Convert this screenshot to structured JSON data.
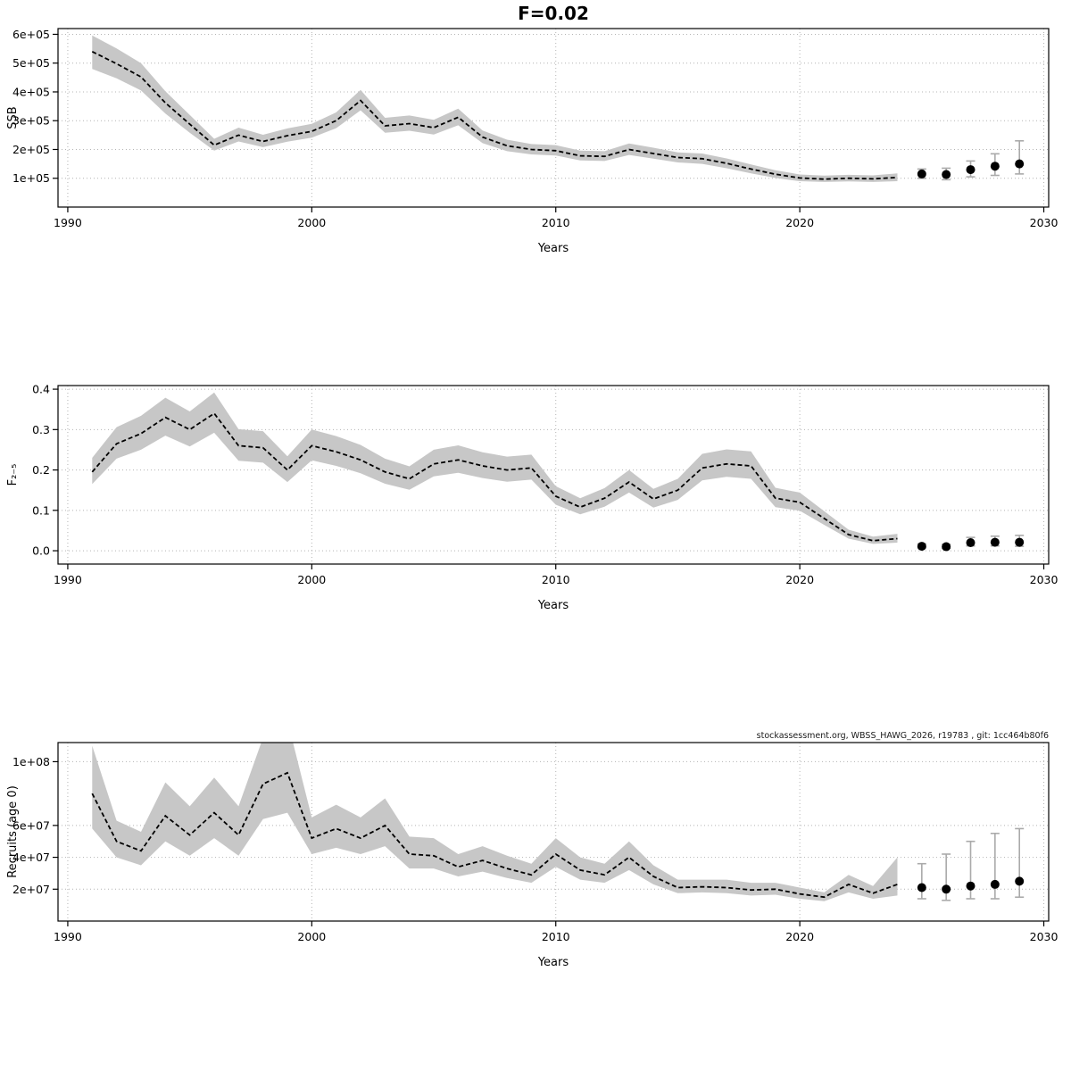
{
  "page": {
    "title": "F=0.02",
    "watermark": "stockassessment.org, WBSS_HAWG_2026, r19783 , git: 1cc464b80f6"
  },
  "colors": {
    "band": "#c7c7c7",
    "line": "#000000",
    "point": "#000000",
    "errorbar": "#aaaaaa",
    "grid": "#b4b4b4",
    "axis": "#000000"
  },
  "chart_data": [
    {
      "id": "ssb",
      "type": "line",
      "title": "F=0.02",
      "xlabel": "Years",
      "ylabel": "SSB",
      "yscale": "linear",
      "grid": true,
      "xlim": [
        1989.6,
        2030.2
      ],
      "ylim": [
        0,
        620000
      ],
      "xticks": [
        1990,
        2000,
        2010,
        2020,
        2030
      ],
      "xtick_labels": [
        "1990",
        "2000",
        "2010",
        "2020",
        "2030"
      ],
      "yticks": [
        100000,
        200000,
        300000,
        400000,
        500000,
        600000
      ],
      "ytick_labels": [
        "1e+05",
        "2e+05",
        "3e+05",
        "4e+05",
        "5e+05",
        "6e+05"
      ],
      "years": [
        1991,
        1992,
        1993,
        1994,
        1995,
        1996,
        1997,
        1998,
        1999,
        2000,
        2001,
        2002,
        2003,
        2004,
        2005,
        2006,
        2007,
        2008,
        2009,
        2010,
        2011,
        2012,
        2013,
        2014,
        2015,
        2016,
        2017,
        2018,
        2019,
        2020,
        2021,
        2022,
        2023,
        2024
      ],
      "estimate": [
        540000,
        498000,
        452000,
        362000,
        288000,
        215000,
        250000,
        228000,
        248000,
        263000,
        300000,
        370000,
        282000,
        290000,
        276000,
        312000,
        243000,
        213000,
        200000,
        196000,
        178000,
        176000,
        200000,
        186000,
        172000,
        168000,
        152000,
        132000,
        114000,
        101000,
        97000,
        100000,
        98000,
        103000
      ],
      "ci_low": [
        480000,
        447000,
        405000,
        325000,
        258000,
        196000,
        228000,
        208000,
        227000,
        241000,
        274000,
        336000,
        258000,
        265000,
        252000,
        284000,
        222000,
        194000,
        183000,
        179000,
        162000,
        160000,
        181000,
        168000,
        155000,
        150000,
        135000,
        117000,
        101000,
        90000,
        87000,
        89000,
        87000,
        90000
      ],
      "ci_high": [
        596000,
        551000,
        500000,
        402000,
        320000,
        237000,
        276000,
        251000,
        273000,
        289000,
        329000,
        407000,
        310000,
        318000,
        303000,
        342000,
        266000,
        234000,
        219000,
        215000,
        196000,
        194000,
        221000,
        206000,
        190000,
        186000,
        169000,
        148000,
        128000,
        113000,
        109000,
        112000,
        110000,
        117000
      ],
      "forecast": {
        "years": [
          2025,
          2026,
          2027,
          2028,
          2029
        ],
        "estimate": [
          115000,
          113000,
          130000,
          142000,
          150000
        ],
        "ci_low": [
          100000,
          95000,
          105000,
          110000,
          115000
        ],
        "ci_high": [
          132000,
          135000,
          160000,
          185000,
          230000
        ]
      }
    },
    {
      "id": "fbar",
      "type": "line",
      "title": "",
      "xlabel": "Years",
      "ylabel": "F₂₋₅",
      "yscale": "linear",
      "grid": true,
      "xlim": [
        1989.6,
        2030.2
      ],
      "ylim": [
        -0.033,
        0.409
      ],
      "xticks": [
        1990,
        2000,
        2010,
        2020,
        2030
      ],
      "xtick_labels": [
        "1990",
        "2000",
        "2010",
        "2020",
        "2030"
      ],
      "yticks": [
        0.0,
        0.1,
        0.2,
        0.3,
        0.4
      ],
      "ytick_labels": [
        "0.0",
        "0.1",
        "0.2",
        "0.3",
        "0.4"
      ],
      "years": [
        1991,
        1992,
        1993,
        1994,
        1995,
        1996,
        1997,
        1998,
        1999,
        2000,
        2001,
        2002,
        2003,
        2004,
        2005,
        2006,
        2007,
        2008,
        2009,
        2010,
        2011,
        2012,
        2013,
        2014,
        2015,
        2016,
        2017,
        2018,
        2019,
        2020,
        2021,
        2022,
        2023,
        2024
      ],
      "estimate": [
        0.195,
        0.265,
        0.29,
        0.33,
        0.3,
        0.34,
        0.26,
        0.255,
        0.2,
        0.26,
        0.245,
        0.225,
        0.195,
        0.178,
        0.215,
        0.225,
        0.21,
        0.2,
        0.205,
        0.135,
        0.108,
        0.13,
        0.17,
        0.128,
        0.15,
        0.205,
        0.215,
        0.21,
        0.13,
        0.12,
        0.08,
        0.04,
        0.025,
        0.03
      ],
      "ci_low": [
        0.165,
        0.228,
        0.25,
        0.285,
        0.258,
        0.292,
        0.223,
        0.218,
        0.17,
        0.224,
        0.21,
        0.192,
        0.166,
        0.151,
        0.184,
        0.193,
        0.18,
        0.171,
        0.176,
        0.114,
        0.09,
        0.109,
        0.144,
        0.107,
        0.126,
        0.174,
        0.183,
        0.178,
        0.108,
        0.099,
        0.064,
        0.03,
        0.017,
        0.02
      ],
      "ci_high": [
        0.23,
        0.306,
        0.334,
        0.379,
        0.345,
        0.392,
        0.301,
        0.296,
        0.234,
        0.3,
        0.284,
        0.262,
        0.228,
        0.209,
        0.25,
        0.261,
        0.244,
        0.233,
        0.238,
        0.16,
        0.13,
        0.155,
        0.2,
        0.153,
        0.178,
        0.24,
        0.251,
        0.246,
        0.156,
        0.144,
        0.098,
        0.052,
        0.035,
        0.042
      ],
      "forecast": {
        "years": [
          2025,
          2026,
          2027,
          2028,
          2029
        ],
        "estimate": [
          0.011,
          0.01,
          0.02,
          0.021,
          0.021
        ],
        "ci_low": [
          0.007,
          0.006,
          0.012,
          0.012,
          0.011
        ],
        "ci_high": [
          0.017,
          0.016,
          0.033,
          0.036,
          0.038
        ]
      }
    },
    {
      "id": "recruits",
      "type": "line",
      "title": "",
      "xlabel": "Years",
      "ylabel": "Recruits (age 0)",
      "yscale": "linear",
      "grid": true,
      "xlim": [
        1989.6,
        2030.2
      ],
      "ylim": [
        0,
        112000000
      ],
      "xticks": [
        1990,
        2000,
        2010,
        2020,
        2030
      ],
      "xtick_labels": [
        "1990",
        "2000",
        "2010",
        "2020",
        "2030"
      ],
      "yticks": [
        20000000,
        40000000,
        60000000,
        100000000
      ],
      "ytick_labels": [
        "2e+07",
        "4e+07",
        "6e+07",
        "1e+08"
      ],
      "years": [
        1991,
        1992,
        1993,
        1994,
        1995,
        1996,
        1997,
        1998,
        1999,
        2000,
        2001,
        2002,
        2003,
        2004,
        2005,
        2006,
        2007,
        2008,
        2009,
        2010,
        2011,
        2012,
        2013,
        2014,
        2015,
        2016,
        2017,
        2018,
        2019,
        2020,
        2021,
        2022,
        2023,
        2024
      ],
      "estimate": [
        80000000,
        50000000,
        44000000,
        66000000,
        54000000,
        68000000,
        54000000,
        86000000,
        93000000,
        52000000,
        58000000,
        52000000,
        60000000,
        42000000,
        41000000,
        34000000,
        38000000,
        33000000,
        29000000,
        42000000,
        32000000,
        29000000,
        40000000,
        28000000,
        21000000,
        21500000,
        21000000,
        19500000,
        20000000,
        17000000,
        15000000,
        23000000,
        17500000,
        23000000
      ],
      "ci_low": [
        58000000,
        40000000,
        35000000,
        50000000,
        41000000,
        52000000,
        41000000,
        64000000,
        68000000,
        42000000,
        46000000,
        42000000,
        47000000,
        33000000,
        33000000,
        28000000,
        31000000,
        27000000,
        24000000,
        34000000,
        26000000,
        24000000,
        32000000,
        23000000,
        17500000,
        18000000,
        17500000,
        16000000,
        16500000,
        14000000,
        12500000,
        18000000,
        14000000,
        16000000
      ],
      "ci_high": [
        110000000,
        63000000,
        56000000,
        87000000,
        72000000,
        90000000,
        72000000,
        115000000,
        126000000,
        65000000,
        73000000,
        65000000,
        77000000,
        53000000,
        52000000,
        42000000,
        47000000,
        41000000,
        36000000,
        52000000,
        40000000,
        36000000,
        50000000,
        35000000,
        26000000,
        26000000,
        26000000,
        24000000,
        24000000,
        21000000,
        18000000,
        29000000,
        22000000,
        40000000
      ],
      "forecast": {
        "years": [
          2025,
          2026,
          2027,
          2028,
          2029
        ],
        "estimate": [
          21000000,
          20000000,
          22000000,
          23000000,
          25000000
        ],
        "ci_low": [
          14000000,
          13000000,
          14000000,
          14000000,
          15000000
        ],
        "ci_high": [
          36000000,
          42000000,
          50000000,
          55000000,
          58000000
        ]
      }
    }
  ]
}
